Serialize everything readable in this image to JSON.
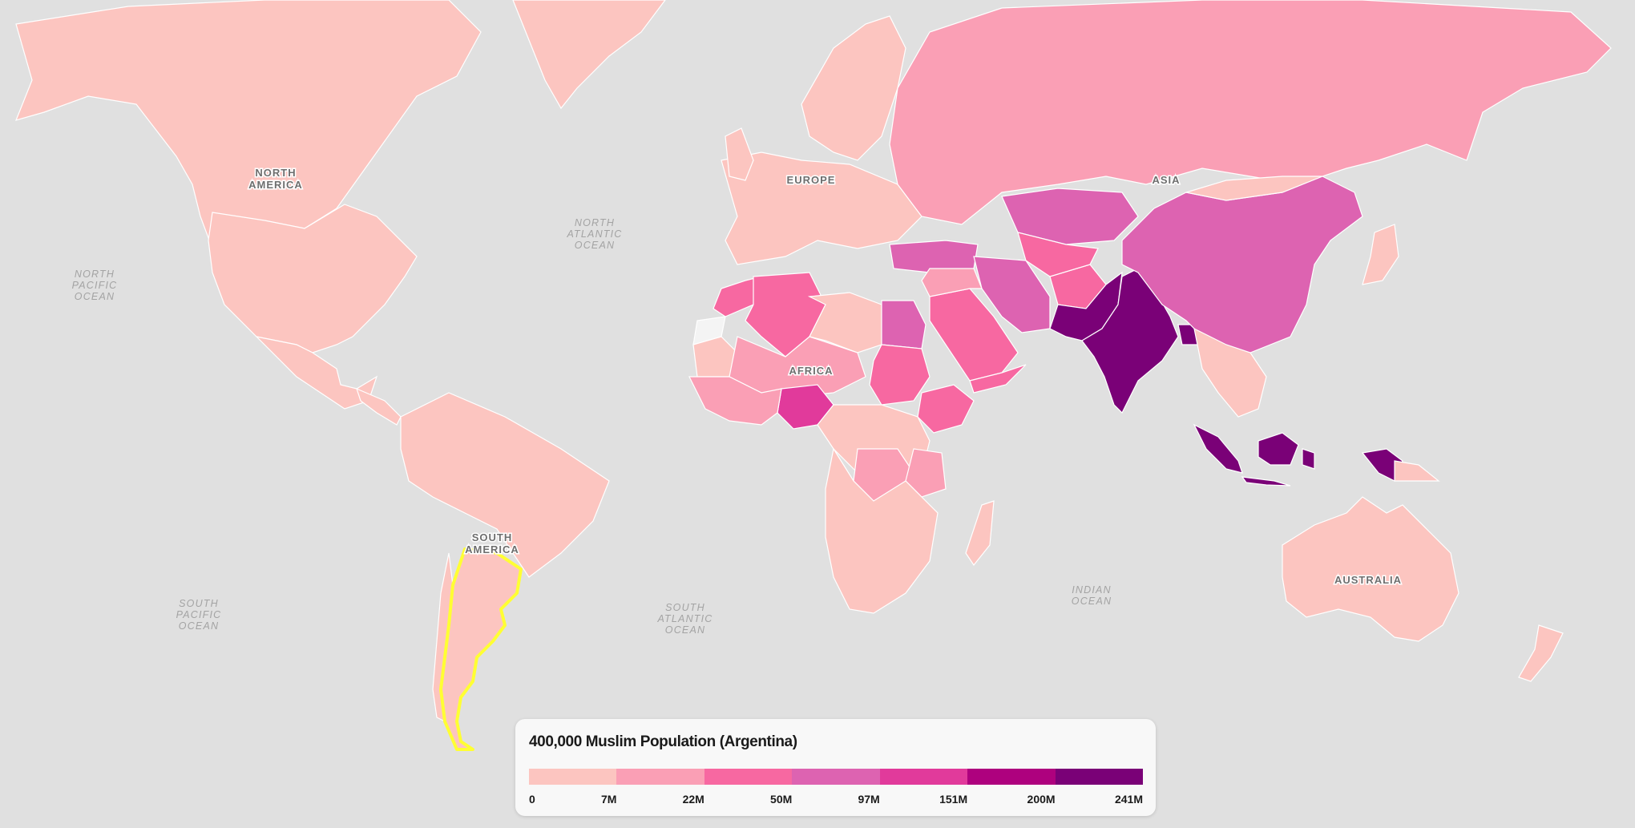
{
  "map": {
    "continent_labels": [
      [
        "NORTH",
        "AMERICA"
      ],
      [
        "EUROPE"
      ],
      [
        "ASIA"
      ],
      [
        "AFRICA"
      ],
      [
        "SOUTH",
        "AMERICA"
      ],
      [
        "AUSTRALIA"
      ]
    ],
    "ocean_labels": [
      [
        "NORTH",
        "PACIFIC",
        "OCEAN"
      ],
      [
        "NORTH",
        "ATLANTIC",
        "OCEAN"
      ],
      [
        "SOUTH",
        "PACIFIC",
        "OCEAN"
      ],
      [
        "SOUTH",
        "ATLANTIC",
        "OCEAN"
      ],
      [
        "INDIAN",
        "OCEAN"
      ]
    ],
    "selected_country": "Argentina",
    "highlight_color": "#ffff33",
    "background_color": "#e0e0e0"
  },
  "legend": {
    "title": "400,000 Muslim Population (Argentina)",
    "colors": [
      "#fcc5c0",
      "#fa9fb5",
      "#f768a1",
      "#dd63b1",
      "#e13a9b",
      "#ae017e",
      "#7a0177"
    ],
    "ticks": [
      "0",
      "7M",
      "22M",
      "50M",
      "97M",
      "151M",
      "200M",
      "241M"
    ]
  }
}
